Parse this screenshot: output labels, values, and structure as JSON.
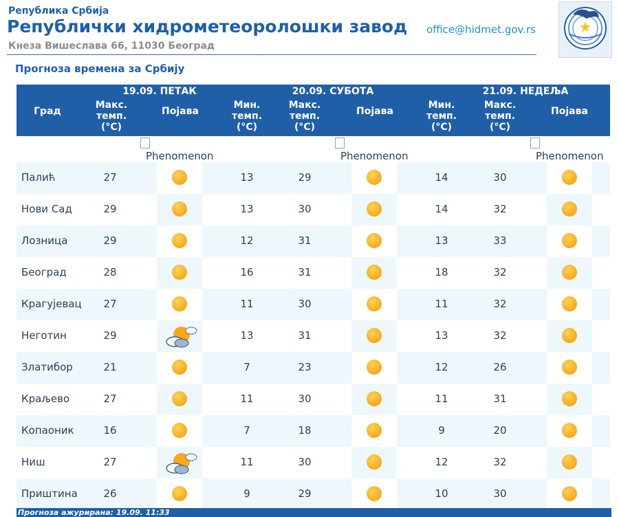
{
  "header": {
    "org_small": "Република Србија",
    "org_name": "Републички хидрометеоролошки завод",
    "address": "Кнеза Вишеслава 66, 11030 Београд",
    "email": "office@hidmet.gov.rs",
    "logo_text": "РХМЗ СРБИЈЕ"
  },
  "title": "Прогноза времена за Србију",
  "days": [
    "19.09. ПЕТАК",
    "20.09. СУБОТА",
    "21.09. НЕДЕЉА"
  ],
  "col_headers": {
    "city": "Град",
    "max": [
      "Макс.",
      "темп.",
      "(°C)"
    ],
    "min": [
      "Мин.",
      "темп.",
      "(°C)"
    ],
    "phen": "Појава"
  },
  "phenomenon_alt": "Phenomenon",
  "rows": [
    {
      "city": "Палић",
      "d1_max": "27",
      "d1_icon": "sun",
      "d2_min": "13",
      "d2_max": "29",
      "d2_icon": "sun",
      "d3_min": "14",
      "d3_max": "30",
      "d3_icon": "sun"
    },
    {
      "city": "Нови Сад",
      "d1_max": "29",
      "d1_icon": "sun",
      "d2_min": "13",
      "d2_max": "30",
      "d2_icon": "sun",
      "d3_min": "14",
      "d3_max": "32",
      "d3_icon": "sun"
    },
    {
      "city": "Лозница",
      "d1_max": "29",
      "d1_icon": "sun",
      "d2_min": "12",
      "d2_max": "31",
      "d2_icon": "sun",
      "d3_min": "13",
      "d3_max": "33",
      "d3_icon": "sun"
    },
    {
      "city": "Београд",
      "d1_max": "28",
      "d1_icon": "sun",
      "d2_min": "16",
      "d2_max": "31",
      "d2_icon": "sun",
      "d3_min": "18",
      "d3_max": "32",
      "d3_icon": "sun"
    },
    {
      "city": "Крагујевац",
      "d1_max": "27",
      "d1_icon": "sun",
      "d2_min": "11",
      "d2_max": "30",
      "d2_icon": "sun",
      "d3_min": "11",
      "d3_max": "32",
      "d3_icon": "sun"
    },
    {
      "city": "Неготин",
      "d1_max": "29",
      "d1_icon": "partly-cloudy",
      "d2_min": "13",
      "d2_max": "31",
      "d2_icon": "sun",
      "d3_min": "13",
      "d3_max": "32",
      "d3_icon": "sun"
    },
    {
      "city": "Златибор",
      "d1_max": "21",
      "d1_icon": "sun",
      "d2_min": "7",
      "d2_max": "23",
      "d2_icon": "sun",
      "d3_min": "12",
      "d3_max": "26",
      "d3_icon": "sun"
    },
    {
      "city": "Краљево",
      "d1_max": "27",
      "d1_icon": "sun",
      "d2_min": "11",
      "d2_max": "30",
      "d2_icon": "sun",
      "d3_min": "11",
      "d3_max": "31",
      "d3_icon": "sun"
    },
    {
      "city": "Копаоник",
      "d1_max": "16",
      "d1_icon": "sun",
      "d2_min": "7",
      "d2_max": "18",
      "d2_icon": "sun",
      "d3_min": "9",
      "d3_max": "20",
      "d3_icon": "sun"
    },
    {
      "city": "Ниш",
      "d1_max": "27",
      "d1_icon": "partly-cloudy",
      "d2_min": "11",
      "d2_max": "30",
      "d2_icon": "sun",
      "d3_min": "12",
      "d3_max": "32",
      "d3_icon": "sun"
    },
    {
      "city": "Приштина",
      "d1_max": "26",
      "d1_icon": "sun",
      "d2_min": "9",
      "d2_max": "29",
      "d2_icon": "sun",
      "d3_min": "10",
      "d3_max": "30",
      "d3_icon": "sun"
    }
  ],
  "footer": "Прогноза ажурирана:  19.09. 11:33",
  "colors": {
    "brand_blue": "#1f5fa8",
    "row_alt": "#eef7fc",
    "sun": "#f8a81c",
    "link": "#1f8fd6"
  }
}
